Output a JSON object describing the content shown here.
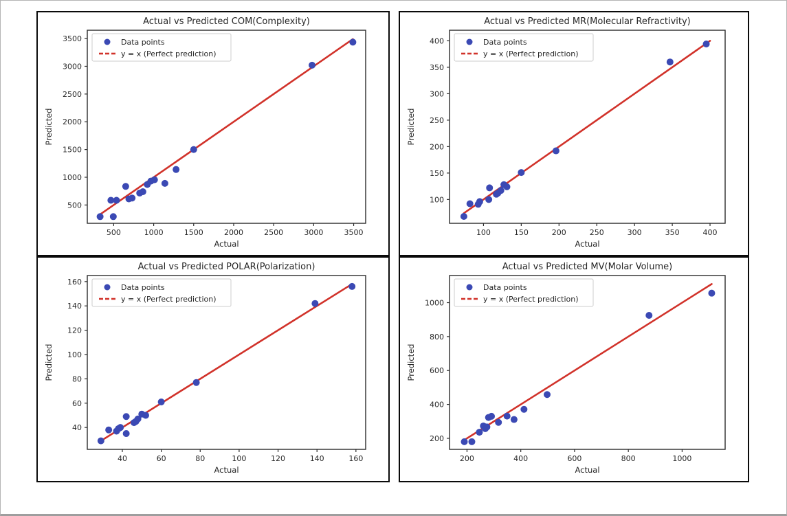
{
  "page": {
    "background": "#ffffff",
    "frame_border_color": "#b4b4b4",
    "panel_border_color": "#0a0a0a"
  },
  "style": {
    "point_color": "#3b49b4",
    "line_color": "#d1322a",
    "text_color": "#262626",
    "spine_color": "#2b2b2b",
    "legend_border_color": "#cccccc",
    "legend_bg": "#ffffff"
  },
  "chart_data": [
    {
      "id": "com",
      "type": "scatter",
      "title": "Actual vs Predicted COM(Complexity)",
      "xlabel": "Actual",
      "ylabel": "Predicted",
      "xlim": [
        170,
        3650
      ],
      "ylim": [
        170,
        3650
      ],
      "xticks": [
        500,
        1000,
        1500,
        2000,
        2500,
        3000,
        3500
      ],
      "yticks": [
        500,
        1000,
        1500,
        2000,
        2500,
        3000,
        3500
      ],
      "legend": [
        "Data points",
        "y = x (Perfect prediction)"
      ],
      "grid": false,
      "legend_position": "upper-left",
      "points": [
        [
          330,
          290
        ],
        [
          495,
          290
        ],
        [
          465,
          585
        ],
        [
          535,
          585
        ],
        [
          650,
          835
        ],
        [
          690,
          610
        ],
        [
          730,
          625
        ],
        [
          825,
          715
        ],
        [
          865,
          740
        ],
        [
          920,
          870
        ],
        [
          965,
          930
        ],
        [
          1010,
          955
        ],
        [
          1140,
          890
        ],
        [
          1280,
          1140
        ],
        [
          1500,
          1500
        ],
        [
          2980,
          3020
        ],
        [
          3490,
          3435
        ]
      ],
      "identity_line": [
        [
          330,
          330
        ],
        [
          3490,
          3490
        ]
      ]
    },
    {
      "id": "mr",
      "type": "scatter",
      "title": "Actual vs Predicted MR(Molecular Refractivity)",
      "xlabel": "Actual",
      "ylabel": "Predicted",
      "xlim": [
        55,
        420
      ],
      "ylim": [
        55,
        420
      ],
      "xticks": [
        100,
        150,
        200,
        250,
        300,
        350,
        400
      ],
      "yticks": [
        100,
        150,
        200,
        250,
        300,
        350,
        400
      ],
      "legend": [
        "Data points",
        "y = x (Perfect prediction)"
      ],
      "grid": false,
      "legend_position": "upper-left",
      "points": [
        [
          74,
          68
        ],
        [
          82,
          92
        ],
        [
          93,
          91
        ],
        [
          95,
          96
        ],
        [
          107,
          100
        ],
        [
          108,
          122
        ],
        [
          117,
          110
        ],
        [
          119,
          112
        ],
        [
          123,
          117
        ],
        [
          127,
          128
        ],
        [
          131,
          124
        ],
        [
          150,
          151
        ],
        [
          196,
          192
        ],
        [
          347,
          360
        ],
        [
          395,
          394
        ]
      ],
      "identity_line": [
        [
          74,
          74
        ],
        [
          400,
          400
        ]
      ]
    },
    {
      "id": "polar",
      "type": "scatter",
      "title": "Actual vs Predicted POLAR(Polarization)",
      "xlabel": "Actual",
      "ylabel": "Predicted",
      "xlim": [
        22,
        165
      ],
      "ylim": [
        22,
        165
      ],
      "xticks": [
        40,
        60,
        80,
        100,
        120,
        140,
        160
      ],
      "yticks": [
        40,
        60,
        80,
        100,
        120,
        140,
        160
      ],
      "legend": [
        "Data points",
        "y = x (Perfect prediction)"
      ],
      "grid": false,
      "legend_position": "upper-left",
      "points": [
        [
          29,
          29
        ],
        [
          33,
          38
        ],
        [
          37,
          37
        ],
        [
          38,
          39
        ],
        [
          39,
          40
        ],
        [
          42,
          35
        ],
        [
          42,
          49
        ],
        [
          46,
          44
        ],
        [
          47,
          45
        ],
        [
          48,
          47
        ],
        [
          50,
          51
        ],
        [
          52,
          50
        ],
        [
          60,
          61
        ],
        [
          78,
          77
        ],
        [
          139,
          142
        ],
        [
          158,
          156
        ]
      ],
      "identity_line": [
        [
          29,
          29
        ],
        [
          158,
          158
        ]
      ]
    },
    {
      "id": "mv",
      "type": "scatter",
      "title": "Actual vs Predicted MV(Molar Volume)",
      "xlabel": "Actual",
      "ylabel": "Predicted",
      "xlim": [
        135,
        1160
      ],
      "ylim": [
        135,
        1160
      ],
      "xticks": [
        200,
        400,
        600,
        800,
        1000
      ],
      "yticks": [
        200,
        400,
        600,
        800,
        1000
      ],
      "legend": [
        "Data points",
        "y = x (Perfect prediction)"
      ],
      "grid": false,
      "legend_position": "upper-left",
      "points": [
        [
          190,
          180
        ],
        [
          218,
          180
        ],
        [
          246,
          236
        ],
        [
          261,
          273
        ],
        [
          268,
          257
        ],
        [
          274,
          267
        ],
        [
          280,
          323
        ],
        [
          291,
          330
        ],
        [
          317,
          294
        ],
        [
          349,
          331
        ],
        [
          375,
          311
        ],
        [
          412,
          371
        ],
        [
          498,
          458
        ],
        [
          877,
          925
        ],
        [
          1110,
          1056
        ]
      ],
      "identity_line": [
        [
          190,
          190
        ],
        [
          1110,
          1110
        ]
      ]
    }
  ]
}
